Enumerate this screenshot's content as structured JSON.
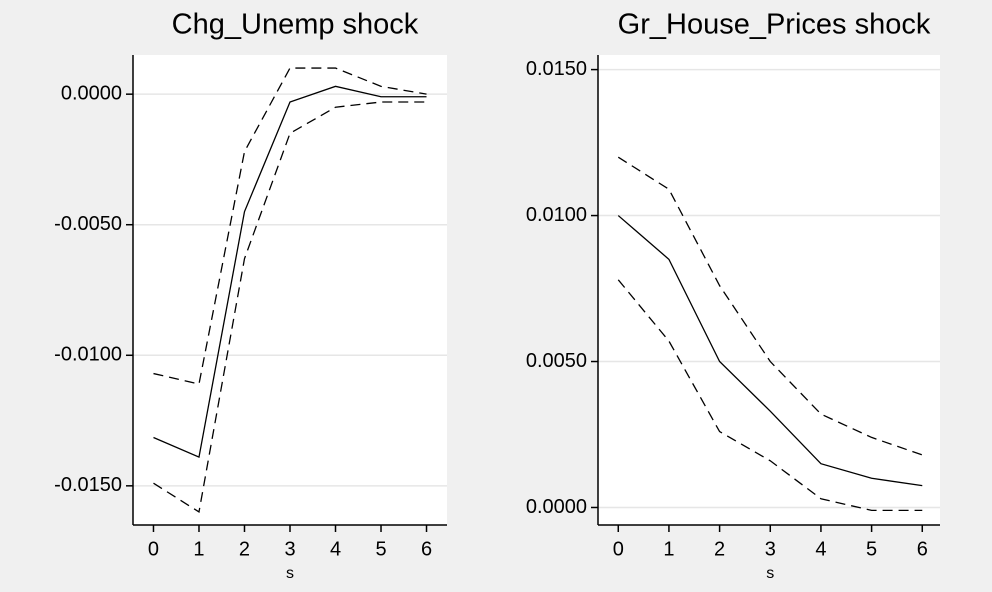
{
  "chart_data": [
    {
      "type": "line",
      "title": "Chg_Unemp shock",
      "x_label": "s",
      "x": [
        0,
        1,
        2,
        3,
        4,
        5,
        6
      ],
      "xlim": [
        -0.45,
        6.45
      ],
      "xticks": [
        0,
        1,
        2,
        3,
        4,
        5,
        6
      ],
      "ylim": [
        -0.0165,
        0.0015
      ],
      "yticks": [
        {
          "value": -0.015,
          "label": "-0.0150"
        },
        {
          "value": -0.01,
          "label": "-0.0100"
        },
        {
          "value": -0.005,
          "label": "-0.0050"
        },
        {
          "value": 0,
          "label": "0.0000"
        }
      ],
      "grid": true,
      "series": [
        {
          "color": "#000000",
          "dash": false,
          "values": [
            -0.01315,
            -0.0139,
            -0.0045,
            -0.0003,
            0.0003,
            -0.0001,
            -0.0001
          ]
        },
        {
          "color": "#000000",
          "dash": true,
          "values": [
            -0.0107,
            -0.0111,
            -0.0022,
            0.001,
            0.001,
            0.0003,
            0.0
          ]
        },
        {
          "color": "#000000",
          "dash": true,
          "values": [
            -0.0149,
            -0.016,
            -0.0063,
            -0.0015,
            -0.0005,
            -0.0003,
            -0.0003
          ]
        }
      ]
    },
    {
      "type": "line",
      "title": "Gr_House_Prices shock",
      "x_label": "s",
      "x": [
        0,
        1,
        2,
        3,
        4,
        5,
        6
      ],
      "xlim": [
        -0.4,
        6.35
      ],
      "xticks": [
        0,
        1,
        2,
        3,
        4,
        5,
        6
      ],
      "ylim": [
        -0.0006,
        0.0155
      ],
      "yticks": [
        {
          "value": 0,
          "label": "0.0000"
        },
        {
          "value": 0.005,
          "label": "0.0050"
        },
        {
          "value": 0.01,
          "label": "0.0100"
        },
        {
          "value": 0.015,
          "label": "0.0150"
        }
      ],
      "grid": true,
      "series": [
        {
          "color": "#000000",
          "dash": false,
          "values": [
            0.01,
            0.0085,
            0.005,
            0.0033,
            0.0015,
            0.001,
            0.00075
          ]
        },
        {
          "color": "#000000",
          "dash": true,
          "values": [
            0.012,
            0.0109,
            0.0076,
            0.005,
            0.0032,
            0.0024,
            0.0018
          ]
        },
        {
          "color": "#000000",
          "dash": true,
          "values": [
            0.0078,
            0.0057,
            0.0026,
            0.0016,
            0.0003,
            -0.0001,
            -0.0001
          ]
        }
      ]
    }
  ]
}
